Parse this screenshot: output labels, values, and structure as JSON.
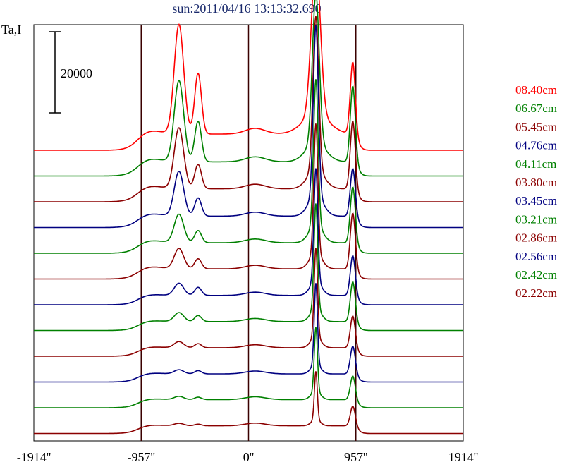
{
  "chart_data": {
    "type": "line",
    "title": "sun:2011/04/16 13:13:32.690",
    "ylabel": "Ta,I",
    "scale_bar": {
      "label": "20000",
      "value": 20000
    },
    "x_ticks": [
      {
        "value": -1914,
        "label": "-1914''"
      },
      {
        "value": -957,
        "label": "-957''"
      },
      {
        "value": 0,
        "label": "0''"
      },
      {
        "value": 957,
        "label": "957''"
      },
      {
        "value": 1914,
        "label": "1914''"
      }
    ],
    "xlim": [
      -1914,
      1914
    ],
    "vertical_lines": [
      -957,
      0,
      957
    ],
    "colors": {
      "red": "#ff0000",
      "green": "#008000",
      "maroon": "#8b0000",
      "navy": "#000080"
    },
    "series": [
      {
        "name": "08.40cm",
        "color": "#ff0000",
        "disk": 4000,
        "limb_peak": 27000,
        "peak_left": 15000,
        "peak_main": 38000,
        "peak_right": 18000,
        "w_main": 40
      },
      {
        "name": "06.67cm",
        "color": "#008000",
        "disk": 3500,
        "limb_peak": 20000,
        "peak_left": 10000,
        "peak_main": 37000,
        "peak_right": 19000,
        "w_main": 30
      },
      {
        "name": "05.45cm",
        "color": "#8b0000",
        "disk": 3200,
        "limb_peak": 15000,
        "peak_left": 6000,
        "peak_main": 38000,
        "peak_right": 17000,
        "w_main": 25
      },
      {
        "name": "04.76cm",
        "color": "#000080",
        "disk": 2800,
        "limb_peak": 11000,
        "peak_left": 4500,
        "peak_main": 42000,
        "peak_right": 12000,
        "w_main": 22
      },
      {
        "name": "04.11cm",
        "color": "#008000",
        "disk": 2600,
        "limb_peak": 7000,
        "peak_left": 3000,
        "peak_main": 36000,
        "peak_right": 14000,
        "w_main": 20
      },
      {
        "name": "03.80cm",
        "color": "#8b0000",
        "disk": 2500,
        "limb_peak": 5000,
        "peak_left": 2500,
        "peak_main": 32000,
        "peak_right": 14000,
        "w_main": 18
      },
      {
        "name": "03.45cm",
        "color": "#000080",
        "disk": 2300,
        "limb_peak": 3000,
        "peak_left": 2000,
        "peak_main": 28000,
        "peak_right": 10000,
        "w_main": 17
      },
      {
        "name": "03.21cm",
        "color": "#008000",
        "disk": 2200,
        "limb_peak": 2200,
        "peak_left": 1500,
        "peak_main": 26000,
        "peak_right": 10000,
        "w_main": 16
      },
      {
        "name": "02.86cm",
        "color": "#8b0000",
        "disk": 2100,
        "limb_peak": 1500,
        "peak_left": 1000,
        "peak_main": 22000,
        "peak_right": 8000,
        "w_main": 15
      },
      {
        "name": "02.56cm",
        "color": "#000080",
        "disk": 2000,
        "limb_peak": 1000,
        "peak_left": 800,
        "peak_main": 20000,
        "peak_right": 7000,
        "w_main": 14
      },
      {
        "name": "02.42cm",
        "color": "#008000",
        "disk": 2000,
        "limb_peak": 800,
        "peak_left": 600,
        "peak_main": 16000,
        "peak_right": 6000,
        "w_main": 14
      },
      {
        "name": "02.22cm",
        "color": "#8b0000",
        "disk": 1900,
        "limb_peak": 600,
        "peak_left": 400,
        "peak_main": 12000,
        "peak_right": 5000,
        "w_main": 13
      }
    ],
    "grid": false,
    "legend_placement": "right"
  }
}
